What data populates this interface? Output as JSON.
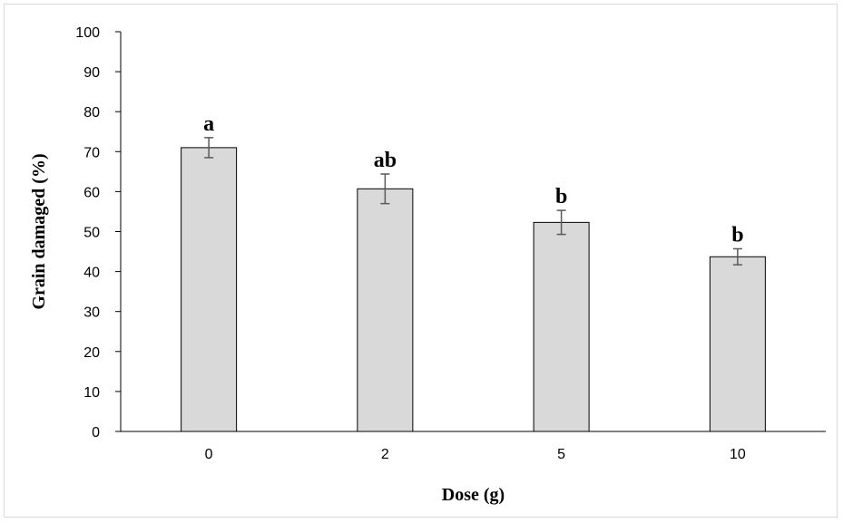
{
  "chart_data": {
    "type": "bar",
    "categories": [
      "0",
      "2",
      "5",
      "10"
    ],
    "values": [
      71,
      60.7,
      52.3,
      43.7
    ],
    "error": [
      2.5,
      3.7,
      3.0,
      2.0
    ],
    "annotations": [
      "a",
      "ab",
      "b",
      "b"
    ],
    "xlabel": "Dose (g)",
    "ylabel": "Grain damaged (%)",
    "ylim": [
      0,
      100
    ],
    "yticks": [
      "0",
      "10",
      "20",
      "30",
      "40",
      "50",
      "60",
      "70",
      "80",
      "90",
      "100"
    ],
    "grid": false,
    "legend": "none",
    "colors": {
      "bar_fill": "#d9d9d9",
      "bar_stroke": "#000000",
      "error_bar": "#595959",
      "axis": "#000000"
    }
  }
}
